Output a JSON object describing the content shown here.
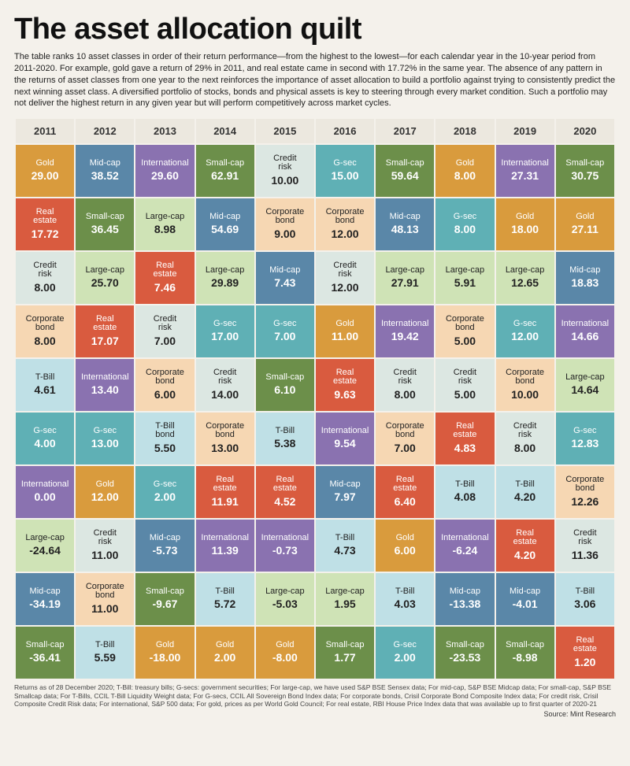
{
  "title": "The asset allocation quilt",
  "intro": "The table ranks 10 asset classes in order of their return performance—from the highest to the lowest—for each calendar year in the 10-year period from 2011-2020. For example, gold gave a return of 29% in 2011, and real estate came in second with 17.72% in the same year. The absence of any pattern in the returns of asset classes from one year to the next reinforces the importance of asset allocation to build a portfolio against trying to consistently predict the next winning asset class. A diversified portfolio of stocks, bonds and physical assets is key to steering through every market condition. Such a portfolio may not deliver the highest return in any given year but will perform competitively across market cycles.",
  "years": [
    "2011",
    "2012",
    "2013",
    "2014",
    "2015",
    "2016",
    "2017",
    "2018",
    "2019",
    "2020"
  ],
  "colors": {
    "Gold": {
      "bg": "#d99b3d",
      "text": "light"
    },
    "Mid-cap": {
      "bg": "#5a87a8",
      "text": "light"
    },
    "International": {
      "bg": "#8a72b0",
      "text": "light"
    },
    "Small-cap": {
      "bg": "#6c8f4a",
      "text": "light"
    },
    "Credit risk": {
      "bg": "#dce7e2",
      "text": "dark"
    },
    "G-sec": {
      "bg": "#5fb0b5",
      "text": "light"
    },
    "Real estate": {
      "bg": "#d95b3f",
      "text": "light"
    },
    "Large-cap": {
      "bg": "#cfe3b6",
      "text": "dark"
    },
    "Corporate bond": {
      "bg": "#f6d7b3",
      "text": "dark"
    },
    "T-Bill": {
      "bg": "#bfe0e6",
      "text": "dark"
    },
    "T-Bill bond": {
      "bg": "#bfe0e6",
      "text": "dark"
    }
  },
  "grid": [
    [
      {
        "k": "Gold",
        "l": "Gold",
        "v": "29.00"
      },
      {
        "k": "Mid-cap",
        "l": "Mid-cap",
        "v": "38.52"
      },
      {
        "k": "International",
        "l": "International",
        "v": "29.60"
      },
      {
        "k": "Small-cap",
        "l": "Small-cap",
        "v": "62.91"
      },
      {
        "k": "Credit risk",
        "l": "Credit risk",
        "v": "10.00"
      },
      {
        "k": "G-sec",
        "l": "G-sec",
        "v": "15.00"
      },
      {
        "k": "Small-cap",
        "l": "Small-cap",
        "v": "59.64"
      },
      {
        "k": "Gold",
        "l": "Gold",
        "v": "8.00"
      },
      {
        "k": "International",
        "l": "International",
        "v": "27.31"
      },
      {
        "k": "Small-cap",
        "l": "Small-cap",
        "v": "30.75"
      }
    ],
    [
      {
        "k": "Real estate",
        "l": "Real estate",
        "v": "17.72"
      },
      {
        "k": "Small-cap",
        "l": "Small-cap",
        "v": "36.45"
      },
      {
        "k": "Large-cap",
        "l": "Large-cap",
        "v": "8.98"
      },
      {
        "k": "Mid-cap",
        "l": "Mid-cap",
        "v": "54.69"
      },
      {
        "k": "Corporate bond",
        "l": "Corporate bond",
        "v": "9.00"
      },
      {
        "k": "Corporate bond",
        "l": "Corporate bond",
        "v": "12.00"
      },
      {
        "k": "Mid-cap",
        "l": "Mid-cap",
        "v": "48.13"
      },
      {
        "k": "G-sec",
        "l": "G-sec",
        "v": "8.00"
      },
      {
        "k": "Gold",
        "l": "Gold",
        "v": "18.00"
      },
      {
        "k": "Gold",
        "l": "Gold",
        "v": "27.11"
      }
    ],
    [
      {
        "k": "Credit risk",
        "l": "Credit risk",
        "v": "8.00"
      },
      {
        "k": "Large-cap",
        "l": "Large-cap",
        "v": "25.70"
      },
      {
        "k": "Real estate",
        "l": "Real estate",
        "v": "7.46"
      },
      {
        "k": "Large-cap",
        "l": "Large-cap",
        "v": "29.89"
      },
      {
        "k": "Mid-cap",
        "l": "Mid-cap",
        "v": "7.43"
      },
      {
        "k": "Credit risk",
        "l": "Credit risk",
        "v": "12.00"
      },
      {
        "k": "Large-cap",
        "l": "Large-cap",
        "v": "27.91"
      },
      {
        "k": "Large-cap",
        "l": "Large-cap",
        "v": "5.91"
      },
      {
        "k": "Large-cap",
        "l": "Large-cap",
        "v": "12.65"
      },
      {
        "k": "Mid-cap",
        "l": "Mid-cap",
        "v": "18.83"
      }
    ],
    [
      {
        "k": "Corporate bond",
        "l": "Corporate bond",
        "v": "8.00"
      },
      {
        "k": "Real estate",
        "l": "Real estate",
        "v": "17.07"
      },
      {
        "k": "Credit risk",
        "l": "Credit risk",
        "v": "7.00"
      },
      {
        "k": "G-sec",
        "l": "G-sec",
        "v": "17.00"
      },
      {
        "k": "G-sec",
        "l": "G-sec",
        "v": "7.00"
      },
      {
        "k": "Gold",
        "l": "Gold",
        "v": "11.00"
      },
      {
        "k": "International",
        "l": "International",
        "v": "19.42"
      },
      {
        "k": "Corporate bond",
        "l": "Corporate bond",
        "v": "5.00"
      },
      {
        "k": "G-sec",
        "l": "G-sec",
        "v": "12.00"
      },
      {
        "k": "International",
        "l": "International",
        "v": "14.66"
      }
    ],
    [
      {
        "k": "T-Bill",
        "l": "T-Bill",
        "v": "4.61"
      },
      {
        "k": "International",
        "l": "International",
        "v": "13.40"
      },
      {
        "k": "Corporate bond",
        "l": "Corporate bond",
        "v": "6.00"
      },
      {
        "k": "Credit risk",
        "l": "Credit risk",
        "v": "14.00"
      },
      {
        "k": "Small-cap",
        "l": "Small-cap",
        "v": "6.10"
      },
      {
        "k": "Real estate",
        "l": "Real estate",
        "v": "9.63"
      },
      {
        "k": "Credit risk",
        "l": "Credit risk",
        "v": "8.00"
      },
      {
        "k": "Credit risk",
        "l": "Credit risk",
        "v": "5.00"
      },
      {
        "k": "Corporate bond",
        "l": "Corporate bond",
        "v": "10.00"
      },
      {
        "k": "Large-cap",
        "l": "Large-cap",
        "v": "14.64"
      }
    ],
    [
      {
        "k": "G-sec",
        "l": "G-sec",
        "v": "4.00"
      },
      {
        "k": "G-sec",
        "l": "G-sec",
        "v": "13.00"
      },
      {
        "k": "T-Bill bond",
        "l": "T-Bill bond",
        "v": "5.50"
      },
      {
        "k": "Corporate bond",
        "l": "Corporate bond",
        "v": "13.00"
      },
      {
        "k": "T-Bill",
        "l": "T-Bill",
        "v": "5.38"
      },
      {
        "k": "International",
        "l": "International",
        "v": "9.54"
      },
      {
        "k": "Corporate bond",
        "l": "Corporate bond",
        "v": "7.00"
      },
      {
        "k": "Real estate",
        "l": "Real estate",
        "v": "4.83"
      },
      {
        "k": "Credit risk",
        "l": "Credit risk",
        "v": "8.00"
      },
      {
        "k": "G-sec",
        "l": "G-sec",
        "v": "12.83"
      }
    ],
    [
      {
        "k": "International",
        "l": "International",
        "v": "0.00"
      },
      {
        "k": "Gold",
        "l": "Gold",
        "v": "12.00"
      },
      {
        "k": "G-sec",
        "l": "G-sec",
        "v": "2.00"
      },
      {
        "k": "Real estate",
        "l": "Real estate",
        "v": "11.91"
      },
      {
        "k": "Real estate",
        "l": "Real estate",
        "v": "4.52"
      },
      {
        "k": "Mid-cap",
        "l": "Mid-cap",
        "v": "7.97"
      },
      {
        "k": "Real estate",
        "l": "Real estate",
        "v": "6.40"
      },
      {
        "k": "T-Bill",
        "l": "T-Bill",
        "v": "4.08"
      },
      {
        "k": "T-Bill",
        "l": "T-Bill",
        "v": "4.20"
      },
      {
        "k": "Corporate bond",
        "l": "Corporate bond",
        "v": "12.26"
      }
    ],
    [
      {
        "k": "Large-cap",
        "l": "Large-cap",
        "v": "-24.64"
      },
      {
        "k": "Credit risk",
        "l": "Credit risk",
        "v": "11.00"
      },
      {
        "k": "Mid-cap",
        "l": "Mid-cap",
        "v": "-5.73"
      },
      {
        "k": "International",
        "l": "International",
        "v": "11.39"
      },
      {
        "k": "International",
        "l": "International",
        "v": "-0.73"
      },
      {
        "k": "T-Bill",
        "l": "T-Bill",
        "v": "4.73"
      },
      {
        "k": "Gold",
        "l": "Gold",
        "v": "6.00"
      },
      {
        "k": "International",
        "l": "International",
        "v": "-6.24"
      },
      {
        "k": "Real estate",
        "l": "Real estate",
        "v": "4.20"
      },
      {
        "k": "Credit risk",
        "l": "Credit risk",
        "v": "11.36"
      }
    ],
    [
      {
        "k": "Mid-cap",
        "l": "Mid-cap",
        "v": "-34.19"
      },
      {
        "k": "Corporate bond",
        "l": "Corporate bond",
        "v": "11.00"
      },
      {
        "k": "Small-cap",
        "l": "Small-cap",
        "v": "-9.67"
      },
      {
        "k": "T-Bill",
        "l": "T-Bill",
        "v": "5.72"
      },
      {
        "k": "Large-cap",
        "l": "Large-cap",
        "v": "-5.03"
      },
      {
        "k": "Large-cap",
        "l": "Large-cap",
        "v": "1.95"
      },
      {
        "k": "T-Bill",
        "l": "T-Bill",
        "v": "4.03"
      },
      {
        "k": "Mid-cap",
        "l": "Mid-cap",
        "v": "-13.38"
      },
      {
        "k": "Mid-cap",
        "l": "Mid-cap",
        "v": "-4.01"
      },
      {
        "k": "T-Bill",
        "l": "T-Bill",
        "v": "3.06"
      }
    ],
    [
      {
        "k": "Small-cap",
        "l": "Small-cap",
        "v": "-36.41"
      },
      {
        "k": "T-Bill",
        "l": "T-Bill",
        "v": "5.59"
      },
      {
        "k": "Gold",
        "l": "Gold",
        "v": "-18.00"
      },
      {
        "k": "Gold",
        "l": "Gold",
        "v": "2.00"
      },
      {
        "k": "Gold",
        "l": "Gold",
        "v": "-8.00"
      },
      {
        "k": "Small-cap",
        "l": "Small-cap",
        "v": "1.77"
      },
      {
        "k": "G-sec",
        "l": "G-sec",
        "v": "2.00"
      },
      {
        "k": "Small-cap",
        "l": "Small-cap",
        "v": "-23.53"
      },
      {
        "k": "Small-cap",
        "l": "Small-cap",
        "v": "-8.98"
      },
      {
        "k": "Real estate",
        "l": "Real estate",
        "v": "1.20"
      }
    ]
  ],
  "footnote": "Returns as of 28 December 2020; T-Bill: treasury bills; G-secs: government securities; For large-cap, we have used S&P BSE Sensex data; For mid-cap, S&P BSE Midcap data; For small-cap, S&P BSE Smallcap data; For T-Bills, CCIL T-Bill Liquidity Weight data; For G-secs, CCIL All Sovereign Bond Index data; For corporate bonds, Crisil Corporate Bond Composite Index data; For credit risk, Crisil Composite Credit Risk data; For international, S&P 500 data; For gold, prices as per World Gold Council; For real estate, RBI House Price Index data that was available up to first quarter of 2020-21",
  "source": "Source: Mint Research"
}
